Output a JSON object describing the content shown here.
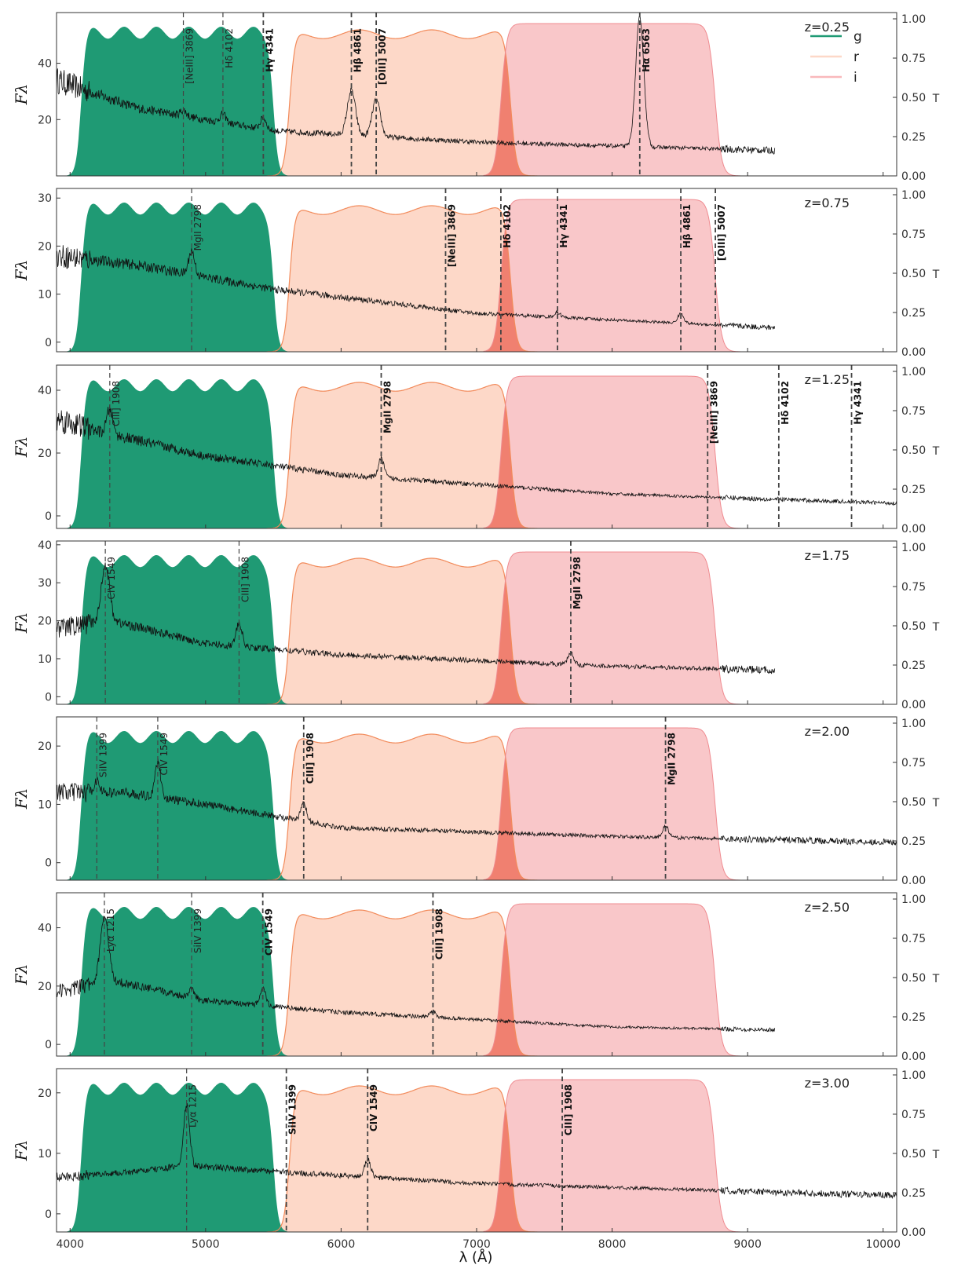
{
  "chart_data": {
    "type": "line",
    "title": "",
    "xlabel": "λ (Å)",
    "ylabel": "Fλ",
    "right_axis_label": "T",
    "xlim": [
      3900,
      10100
    ],
    "x_ticks": [
      "4000",
      "5000",
      "6000",
      "7000",
      "8000",
      "9000",
      "10000"
    ],
    "x_tick_values": [
      4000,
      5000,
      6000,
      7000,
      8000,
      9000,
      10000
    ],
    "transmission_ticks": [
      "0.00",
      "0.25",
      "0.50",
      "0.75",
      "1.00"
    ],
    "legend": [
      {
        "name": "g",
        "color": "#1f9a74"
      },
      {
        "name": "r",
        "color": "#fdd8c8"
      },
      {
        "name": "i",
        "color": "#f9b8bb"
      }
    ],
    "filters": {
      "g": {
        "color": "#1f9a74",
        "range": [
          4080,
          5500
        ],
        "level": 0.95
      },
      "r": {
        "color": "#fdd8c8",
        "edge": "#f28a5a",
        "range": [
          5620,
          7250
        ],
        "level": 0.93
      },
      "i": {
        "color": "#f9c4c6",
        "edge": "#ef8b90",
        "range": [
          7180,
          8760
        ],
        "level": 0.97
      },
      "overlap_fill": "#f08070"
    },
    "panels": [
      {
        "z_label": "z=0.25",
        "ylim": [
          0,
          58
        ],
        "yticks": [
          "20",
          "40"
        ],
        "ytick_values": [
          20,
          40
        ],
        "spectrum_end": 9200,
        "continuum": [
          [
            3900,
            34
          ],
          [
            4500,
            24
          ],
          [
            5500,
            16
          ],
          [
            7000,
            12
          ],
          [
            9200,
            9
          ]
        ],
        "lines": [
          {
            "label": "[NeIII] 3869",
            "wavelength": 4836,
            "bold": false
          },
          {
            "label": "Hδ 4102",
            "wavelength": 5128,
            "bold": false
          },
          {
            "label": "Hγ 4341",
            "wavelength": 5426,
            "bold": true
          },
          {
            "label": "Hβ 4861",
            "wavelength": 6076,
            "bold": true
          },
          {
            "label": "[OIII] 5007",
            "wavelength": 6259,
            "bold": true
          },
          {
            "label": "Hα 6563",
            "wavelength": 8204,
            "bold": true
          }
        ],
        "peaks": [
          [
            4836,
            2
          ],
          [
            5128,
            3
          ],
          [
            5426,
            4
          ],
          [
            6076,
            16
          ],
          [
            6259,
            13
          ],
          [
            8204,
            46
          ]
        ]
      },
      {
        "z_label": "z=0.75",
        "ylim": [
          -2,
          32
        ],
        "yticks": [
          "0",
          "10",
          "20",
          "30"
        ],
        "ytick_values": [
          0,
          10,
          20,
          30
        ],
        "spectrum_end": 9200,
        "continuum": [
          [
            3900,
            18
          ],
          [
            4500,
            16
          ],
          [
            5500,
            11
          ],
          [
            7000,
            6
          ],
          [
            9200,
            3
          ]
        ],
        "lines": [
          {
            "label": "MgII 2798",
            "wavelength": 4897,
            "bold": false
          },
          {
            "label": "[NeIII] 3869",
            "wavelength": 6771,
            "bold": true
          },
          {
            "label": "Hδ 4102",
            "wavelength": 7179,
            "bold": true
          },
          {
            "label": "Hγ 4341",
            "wavelength": 7597,
            "bold": true
          },
          {
            "label": "Hβ 4861",
            "wavelength": 8507,
            "bold": true
          },
          {
            "label": "[OIII] 5007",
            "wavelength": 8762,
            "bold": true
          }
        ],
        "peaks": [
          [
            4897,
            5
          ],
          [
            7597,
            1
          ],
          [
            8507,
            2
          ]
        ]
      },
      {
        "z_label": "z=1.25",
        "ylim": [
          -4,
          48
        ],
        "yticks": [
          "0",
          "20",
          "40"
        ],
        "ytick_values": [
          0,
          20,
          40
        ],
        "spectrum_end": 10100,
        "continuum": [
          [
            3900,
            31
          ],
          [
            4200,
            27
          ],
          [
            5000,
            19
          ],
          [
            6000,
            13
          ],
          [
            8000,
            7
          ],
          [
            10100,
            4
          ]
        ],
        "lines": [
          {
            "label": "CIII] 1908",
            "wavelength": 4293,
            "bold": false
          },
          {
            "label": "MgII 2798",
            "wavelength": 6296,
            "bold": true
          },
          {
            "label": "[NeIII] 3869",
            "wavelength": 8705,
            "bold": true
          },
          {
            "label": "Hδ 4102",
            "wavelength": 9230,
            "bold": true
          },
          {
            "label": "Hγ 4341",
            "wavelength": 9767,
            "bold": true
          }
        ],
        "peaks": [
          [
            4293,
            8
          ],
          [
            6296,
            6
          ]
        ]
      },
      {
        "z_label": "z=1.75",
        "ylim": [
          -2,
          41
        ],
        "yticks": [
          "0",
          "10",
          "20",
          "30",
          "40"
        ],
        "ytick_values": [
          0,
          10,
          20,
          30,
          40
        ],
        "spectrum_end": 9200,
        "continuum": [
          [
            3900,
            18
          ],
          [
            4300,
            20
          ],
          [
            5000,
            14
          ],
          [
            6000,
            11
          ],
          [
            8000,
            8
          ],
          [
            9200,
            7
          ]
        ],
        "lines": [
          {
            "label": "CIV 1549",
            "wavelength": 4260,
            "bold": false
          },
          {
            "label": "CIII] 1908",
            "wavelength": 5247,
            "bold": false
          },
          {
            "label": "MgII 2798",
            "wavelength": 7695,
            "bold": true
          }
        ],
        "peaks": [
          [
            4260,
            15
          ],
          [
            5247,
            6
          ],
          [
            7695,
            3
          ]
        ]
      },
      {
        "z_label": "z=2.00",
        "ylim": [
          -3,
          25
        ],
        "yticks": [
          "0",
          "10",
          "20"
        ],
        "ytick_values": [
          0,
          10,
          20
        ],
        "spectrum_end": 10100,
        "continuum": [
          [
            3900,
            12
          ],
          [
            4400,
            12
          ],
          [
            5000,
            10
          ],
          [
            6000,
            6
          ],
          [
            8000,
            4.5
          ],
          [
            10100,
            3.5
          ]
        ],
        "lines": [
          {
            "label": "SiIV 1399",
            "wavelength": 4197,
            "bold": false
          },
          {
            "label": "CIV 1549",
            "wavelength": 4647,
            "bold": false
          },
          {
            "label": "CIII] 1908",
            "wavelength": 5724,
            "bold": true
          },
          {
            "label": "MgII 2798",
            "wavelength": 8394,
            "bold": true
          }
        ],
        "peaks": [
          [
            4197,
            2
          ],
          [
            4647,
            6
          ],
          [
            5724,
            3
          ],
          [
            8394,
            2
          ]
        ]
      },
      {
        "z_label": "z=2.50",
        "ylim": [
          -4,
          52
        ],
        "yticks": [
          "0",
          "20",
          "40"
        ],
        "ytick_values": [
          0,
          20,
          40
        ],
        "spectrum_end": 9200,
        "continuum": [
          [
            3900,
            18
          ],
          [
            4300,
            22
          ],
          [
            5000,
            15
          ],
          [
            6000,
            11
          ],
          [
            8000,
            6
          ],
          [
            9200,
            5
          ]
        ],
        "lines": [
          {
            "label": "Lyα 1215",
            "wavelength": 4253,
            "bold": false
          },
          {
            "label": "SiIV 1399",
            "wavelength": 4897,
            "bold": false
          },
          {
            "label": "CIV 1549",
            "wavelength": 5422,
            "bold": true
          },
          {
            "label": "CIII] 1908",
            "wavelength": 6678,
            "bold": true
          }
        ],
        "peaks": [
          [
            4253,
            22
          ],
          [
            4897,
            3
          ],
          [
            5422,
            6
          ],
          [
            6678,
            2
          ]
        ]
      },
      {
        "z_label": "z=3.00",
        "ylim": [
          -3,
          24
        ],
        "yticks": [
          "0",
          "10",
          "20"
        ],
        "ytick_values": [
          0,
          10,
          20
        ],
        "spectrum_end": 10100,
        "continuum": [
          [
            3900,
            6
          ],
          [
            4500,
            7
          ],
          [
            4860,
            8
          ],
          [
            5500,
            7
          ],
          [
            7000,
            5
          ],
          [
            10100,
            3
          ]
        ],
        "lines": [
          {
            "label": "Lyα 1215",
            "wavelength": 4860,
            "bold": false
          },
          {
            "label": "SiIV 1399",
            "wavelength": 5596,
            "bold": true
          },
          {
            "label": "CIV 1549",
            "wavelength": 6196,
            "bold": true
          },
          {
            "label": "CIII] 1908",
            "wavelength": 7632,
            "bold": true
          }
        ],
        "peaks": [
          [
            4860,
            10
          ],
          [
            6196,
            3
          ]
        ]
      }
    ]
  }
}
